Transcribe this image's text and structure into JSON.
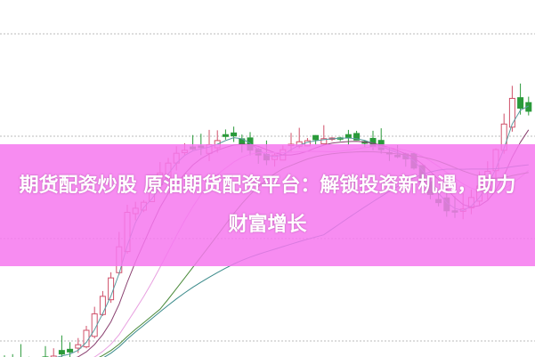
{
  "article": {
    "title": "期货配资炒股 原油期货配资平台：解锁投资新机遇，助力财富增长"
  },
  "colors": {
    "banner": "#f678ee",
    "candle_up": "#d0506a",
    "candle_down": "#2a9a3a",
    "ma_lines": [
      "#5a9aa0",
      "#8a4070",
      "#e8a0e0",
      "#4a8a3a",
      "#3a8a8a"
    ]
  }
}
